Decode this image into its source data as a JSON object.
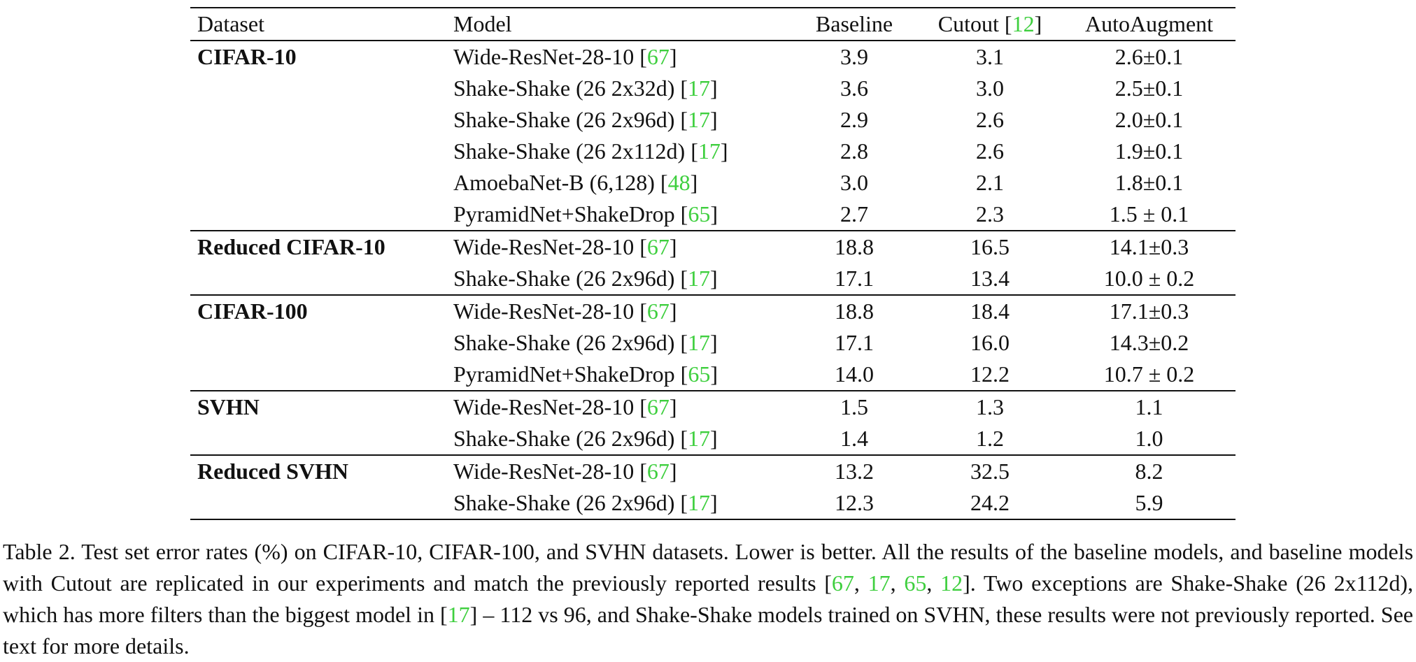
{
  "table": {
    "headers": {
      "dataset": "Dataset",
      "model": "Model",
      "baseline": "Baseline",
      "cutout": "Cutout",
      "cutout_cite": "12",
      "autoaugment": "AutoAugment"
    },
    "groups": [
      {
        "dataset": "CIFAR-10",
        "rows": [
          {
            "model": "Wide-ResNet-28-10",
            "cite": "67",
            "baseline": "3.9",
            "cutout": "3.1",
            "autoaugment": "2.6±0.1",
            "aa_bold": false
          },
          {
            "model": "Shake-Shake (26 2x32d)",
            "cite": "17",
            "baseline": "3.6",
            "cutout": "3.0",
            "autoaugment": "2.5±0.1",
            "aa_bold": false
          },
          {
            "model": "Shake-Shake (26 2x96d)",
            "cite": "17",
            "baseline": "2.9",
            "cutout": "2.6",
            "autoaugment": "2.0±0.1",
            "aa_bold": false
          },
          {
            "model": "Shake-Shake (26 2x112d)",
            "cite": "17",
            "baseline": "2.8",
            "cutout": "2.6",
            "autoaugment": "1.9±0.1",
            "aa_bold": false
          },
          {
            "model": "AmoebaNet-B (6,128)",
            "cite": "48",
            "baseline": "3.0",
            "cutout": "2.1",
            "autoaugment": "1.8±0.1",
            "aa_bold": false
          },
          {
            "model": "PyramidNet+ShakeDrop",
            "cite": "65",
            "baseline": "2.7",
            "cutout": "2.3",
            "autoaugment": "1.5 ± 0.1",
            "aa_bold": true
          }
        ]
      },
      {
        "dataset": "Reduced CIFAR-10",
        "rows": [
          {
            "model": "Wide-ResNet-28-10",
            "cite": "67",
            "baseline": "18.8",
            "cutout": "16.5",
            "autoaugment": "14.1±0.3",
            "aa_bold": false
          },
          {
            "model": "Shake-Shake (26 2x96d)",
            "cite": "17",
            "baseline": "17.1",
            "cutout": "13.4",
            "autoaugment": "10.0 ± 0.2",
            "aa_bold": true
          }
        ]
      },
      {
        "dataset": "CIFAR-100",
        "rows": [
          {
            "model": "Wide-ResNet-28-10",
            "cite": "67",
            "baseline": "18.8",
            "cutout": "18.4",
            "autoaugment": "17.1±0.3",
            "aa_bold": false
          },
          {
            "model": "Shake-Shake (26 2x96d)",
            "cite": "17",
            "baseline": "17.1",
            "cutout": "16.0",
            "autoaugment": "14.3±0.2",
            "aa_bold": false
          },
          {
            "model": "PyramidNet+ShakeDrop",
            "cite": "65",
            "baseline": "14.0",
            "cutout": "12.2",
            "autoaugment": "10.7 ± 0.2",
            "aa_bold": true
          }
        ]
      },
      {
        "dataset": "SVHN",
        "rows": [
          {
            "model": "Wide-ResNet-28-10",
            "cite": "67",
            "baseline": "1.5",
            "cutout": "1.3",
            "autoaugment": "1.1",
            "aa_bold": false
          },
          {
            "model": "Shake-Shake (26 2x96d)",
            "cite": "17",
            "baseline": "1.4",
            "cutout": "1.2",
            "autoaugment": "1.0",
            "aa_bold": true
          }
        ]
      },
      {
        "dataset": "Reduced SVHN",
        "rows": [
          {
            "model": "Wide-ResNet-28-10",
            "cite": "67",
            "baseline": "13.2",
            "cutout": "32.5",
            "autoaugment": "8.2",
            "aa_bold": false
          },
          {
            "model": "Shake-Shake (26 2x96d)",
            "cite": "17",
            "baseline": "12.3",
            "cutout": "24.2",
            "autoaugment": "5.9",
            "aa_bold": true
          }
        ]
      }
    ]
  },
  "caption": {
    "label": "Table 2.",
    "text_1": "Test set error rates (%) on CIFAR-10, CIFAR-100, and SVHN datasets. Lower is better. All the results of the baseline models, and baseline models with Cutout are replicated in our experiments and match the previously reported results [",
    "cites_1": [
      "67",
      "17",
      "65",
      "12"
    ],
    "text_2": "]. Two exceptions are Shake-Shake (26 2x112d), which has more filters than the biggest model in [",
    "cite_2": "17",
    "text_3": "] – 112 vs 96, and Shake-Shake models trained on SVHN, these results were not previously reported. See text for more details."
  },
  "colors": {
    "citation": "#3ecf3e",
    "text": "#111111"
  }
}
